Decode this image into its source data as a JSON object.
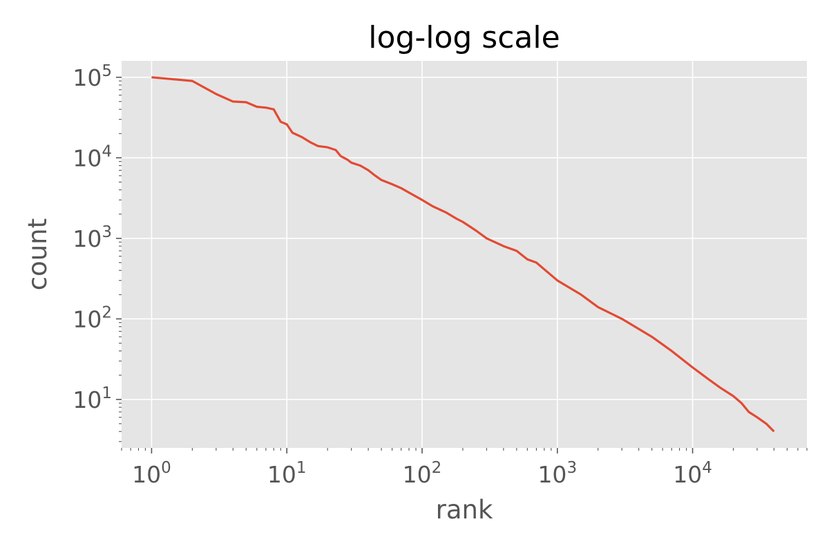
{
  "chart_data": {
    "type": "line",
    "title": "log-log scale",
    "xlabel": "rank",
    "ylabel": "count",
    "xscale": "log",
    "yscale": "log",
    "xlim": [
      0.6,
      70000
    ],
    "ylim": [
      2.5,
      160000
    ],
    "grid": true,
    "x_ticks": [
      {
        "base": "10",
        "exp": "0",
        "value": 1
      },
      {
        "base": "10",
        "exp": "1",
        "value": 10
      },
      {
        "base": "10",
        "exp": "2",
        "value": 100
      },
      {
        "base": "10",
        "exp": "3",
        "value": 1000
      },
      {
        "base": "10",
        "exp": "4",
        "value": 10000
      }
    ],
    "y_ticks": [
      {
        "base": "10",
        "exp": "1",
        "value": 10
      },
      {
        "base": "10",
        "exp": "2",
        "value": 100
      },
      {
        "base": "10",
        "exp": "3",
        "value": 1000
      },
      {
        "base": "10",
        "exp": "4",
        "value": 10000
      },
      {
        "base": "10",
        "exp": "5",
        "value": 100000
      }
    ],
    "colors": {
      "background": "#E5E5E5",
      "series": "#E24A33",
      "grid": "#FFFFFF",
      "text": "#555555"
    },
    "series": [
      {
        "x": [
          1,
          2,
          3,
          4,
          5,
          6,
          7,
          8,
          9,
          10,
          11,
          13,
          15,
          17,
          20,
          23,
          25,
          28,
          30,
          35,
          40,
          45,
          50,
          60,
          70,
          80,
          100,
          120,
          150,
          180,
          200,
          250,
          300,
          400,
          500,
          600,
          700,
          1000,
          1500,
          2000,
          3000,
          5000,
          7000,
          10000,
          13000,
          16000,
          20000,
          23000,
          26000,
          30000,
          35000,
          40000
        ],
        "y": [
          100000,
          90000,
          62000,
          50000,
          49000,
          43000,
          42000,
          40000,
          28000,
          26000,
          20500,
          18000,
          15500,
          14000,
          13500,
          12500,
          10500,
          9500,
          8700,
          8000,
          7000,
          6000,
          5300,
          4700,
          4200,
          3700,
          3000,
          2500,
          2100,
          1750,
          1600,
          1250,
          1000,
          800,
          700,
          550,
          500,
          300,
          200,
          140,
          100,
          60,
          40,
          25,
          18,
          14,
          11,
          9,
          7,
          6,
          5,
          4
        ]
      }
    ]
  }
}
